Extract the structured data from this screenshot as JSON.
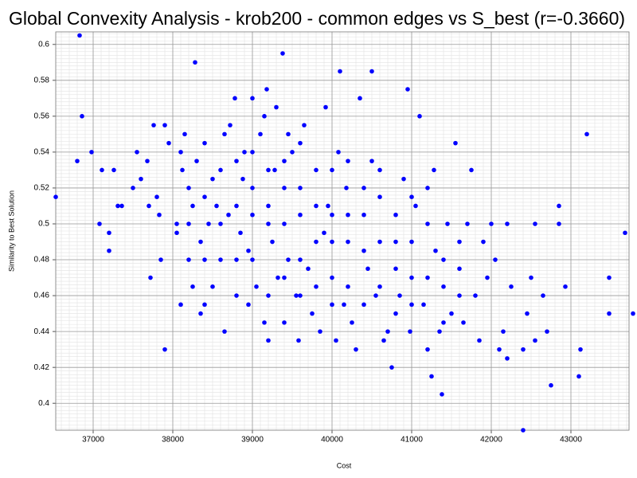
{
  "chart_data": {
    "type": "scatter",
    "title": "Global Convexity Analysis - krob200 - common edges vs S_best (r=-0.3660)",
    "x_label": "Cost",
    "y_label": "Similarity to Best Solution",
    "color": "#0000ff",
    "grid": true,
    "xlim": [
      36530,
      43730
    ],
    "ylim": [
      0.385,
      0.607
    ],
    "xticks": [
      37000,
      38000,
      39000,
      40000,
      41000,
      42000,
      43000
    ],
    "yticks": [
      0.4,
      0.42,
      0.44,
      0.46,
      0.48,
      0.5,
      0.52,
      0.54,
      0.56,
      0.58,
      0.6
    ],
    "x": [
      36530,
      36800,
      36830,
      36860,
      36980,
      37080,
      37110,
      37200,
      37200,
      37260,
      37310,
      37360,
      37500,
      37550,
      37600,
      37680,
      37700,
      37720,
      37760,
      37800,
      37830,
      37850,
      37900,
      37900,
      37950,
      38050,
      38050,
      38100,
      38100,
      38120,
      38150,
      38200,
      38250,
      38250,
      38280,
      38300,
      38350,
      38350,
      38400,
      38400,
      38450,
      38500,
      38500,
      38550,
      38600,
      38650,
      38650,
      38700,
      38720,
      38780,
      38800,
      38850,
      38880,
      38900,
      38950,
      38950,
      39000,
      39000,
      39050,
      39100,
      39150,
      39150,
      39180,
      39200,
      39200,
      39250,
      39280,
      39300,
      39320,
      39380,
      39400,
      39400,
      39450,
      39450,
      39500,
      39550,
      39580,
      39600,
      39650,
      39700,
      39750,
      39800,
      39850,
      39900,
      39920,
      39950,
      40000,
      40050,
      40080,
      40100,
      40150,
      40180,
      40200,
      40250,
      40300,
      40350,
      40400,
      40450,
      40500,
      40500,
      40550,
      40600,
      40650,
      40700,
      40750,
      40800,
      40850,
      40900,
      40950,
      40980,
      41000,
      41050,
      41100,
      41150,
      41200,
      41250,
      41280,
      41300,
      41350,
      41380,
      41400,
      41450,
      41500,
      41550,
      41600,
      41650,
      41700,
      41750,
      41800,
      41850,
      41900,
      41950,
      42000,
      42050,
      42100,
      42150,
      42200,
      42200,
      42250,
      42400,
      42400,
      42450,
      42500,
      42550,
      42550,
      42650,
      42700,
      42750,
      42850,
      42850,
      42930,
      43100,
      43120,
      43200,
      43480,
      43480,
      43680,
      43780,
      38200,
      38200,
      38400,
      38400,
      38600,
      38600,
      38800,
      38800,
      38800,
      39000,
      39000,
      39000,
      39200,
      39200,
      39200,
      39400,
      39400,
      39400,
      39600,
      39600,
      39600,
      39600,
      39800,
      39800,
      39800,
      40000,
      40000,
      40000,
      40000,
      40200,
      40200,
      40200,
      40400,
      40400,
      40400,
      40600,
      40600,
      40600,
      40800,
      40800,
      40800,
      41000,
      41000,
      41000,
      41200,
      41200,
      41200,
      41400,
      41400,
      41600,
      41600
    ],
    "values": [
      0.515,
      0.535,
      0.605,
      0.56,
      0.54,
      0.5,
      0.53,
      0.495,
      0.485,
      0.53,
      0.51,
      0.51,
      0.52,
      0.54,
      0.525,
      0.535,
      0.51,
      0.47,
      0.555,
      0.515,
      0.505,
      0.48,
      0.43,
      0.555,
      0.545,
      0.495,
      0.5,
      0.455,
      0.54,
      0.53,
      0.55,
      0.52,
      0.465,
      0.51,
      0.59,
      0.535,
      0.45,
      0.49,
      0.455,
      0.545,
      0.5,
      0.525,
      0.465,
      0.51,
      0.48,
      0.44,
      0.55,
      0.505,
      0.555,
      0.57,
      0.46,
      0.495,
      0.525,
      0.54,
      0.455,
      0.485,
      0.57,
      0.505,
      0.465,
      0.55,
      0.445,
      0.56,
      0.575,
      0.435,
      0.51,
      0.49,
      0.53,
      0.565,
      0.47,
      0.595,
      0.445,
      0.52,
      0.55,
      0.48,
      0.54,
      0.46,
      0.435,
      0.505,
      0.555,
      0.475,
      0.45,
      0.53,
      0.44,
      0.495,
      0.565,
      0.51,
      0.47,
      0.435,
      0.54,
      0.585,
      0.455,
      0.52,
      0.49,
      0.445,
      0.43,
      0.57,
      0.505,
      0.475,
      0.585,
      0.535,
      0.46,
      0.515,
      0.435,
      0.44,
      0.42,
      0.49,
      0.46,
      0.525,
      0.575,
      0.44,
      0.47,
      0.51,
      0.56,
      0.455,
      0.43,
      0.415,
      0.53,
      0.485,
      0.44,
      0.405,
      0.465,
      0.5,
      0.45,
      0.545,
      0.475,
      0.445,
      0.5,
      0.53,
      0.46,
      0.435,
      0.49,
      0.47,
      0.5,
      0.48,
      0.43,
      0.44,
      0.425,
      0.5,
      0.465,
      0.385,
      0.43,
      0.45,
      0.47,
      0.435,
      0.5,
      0.46,
      0.44,
      0.41,
      0.5,
      0.51,
      0.465,
      0.415,
      0.43,
      0.55,
      0.47,
      0.45,
      0.495,
      0.45,
      0.48,
      0.5,
      0.48,
      0.515,
      0.5,
      0.53,
      0.48,
      0.51,
      0.535,
      0.48,
      0.52,
      0.54,
      0.46,
      0.5,
      0.53,
      0.47,
      0.5,
      0.535,
      0.46,
      0.48,
      0.52,
      0.545,
      0.465,
      0.49,
      0.51,
      0.455,
      0.49,
      0.505,
      0.53,
      0.465,
      0.505,
      0.535,
      0.455,
      0.485,
      0.52,
      0.465,
      0.49,
      0.53,
      0.475,
      0.505,
      0.45,
      0.49,
      0.515,
      0.455,
      0.47,
      0.5,
      0.52,
      0.48,
      0.445,
      0.49,
      0.46
    ]
  }
}
